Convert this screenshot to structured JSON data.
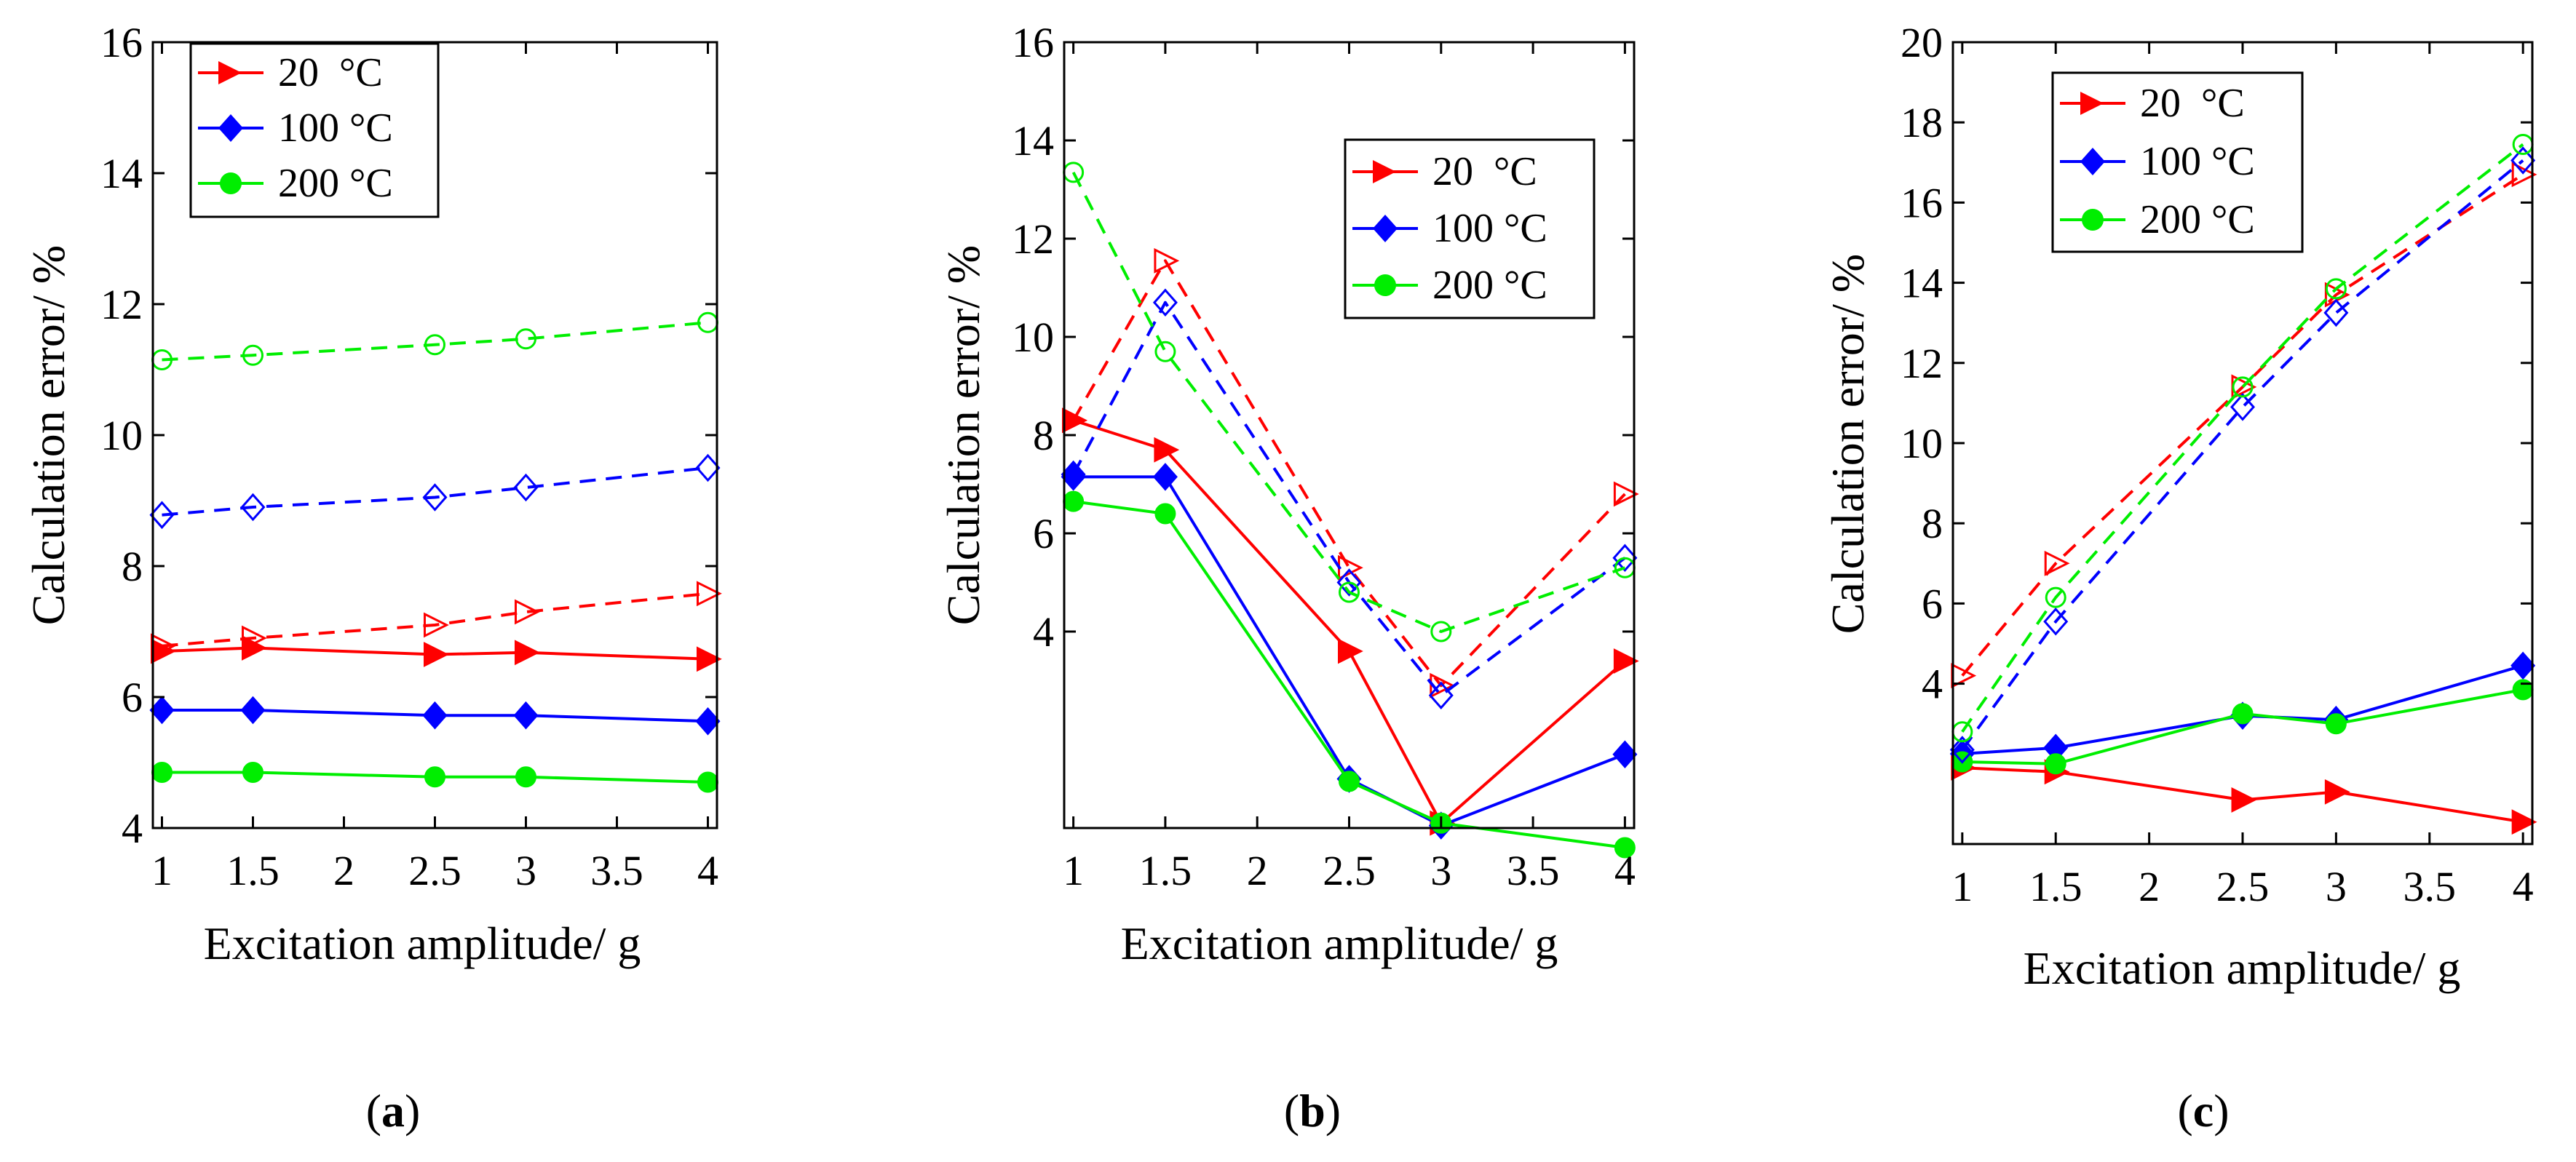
{
  "colors": {
    "red": "#ff0000",
    "blue": "#0000ff",
    "green": "#00ee00",
    "axis": "#000000"
  },
  "panels": [
    {
      "id": "a",
      "label_open": "(",
      "label_letter": "a",
      "label_close": ")",
      "xlabel": "Excitation amplitude/ g",
      "ylabel": "Calculation error/ %",
      "xlim": [
        0.95,
        4.05
      ],
      "ylim": [
        4,
        16
      ],
      "xticks": [
        1,
        1.5,
        2,
        2.5,
        3,
        3.5,
        4
      ],
      "xtick_labels": [
        "1",
        "1.5",
        "2",
        "2.5",
        "3",
        "3.5",
        "4"
      ],
      "yticks": [
        4,
        6,
        8,
        10,
        12,
        14,
        16
      ],
      "ytick_labels": [
        "4",
        "6",
        "8",
        "10",
        "12",
        "14",
        "16"
      ],
      "legend_position": "top-left",
      "legend": [
        "20  °C",
        "100 °C",
        "200 °C"
      ]
    },
    {
      "id": "b",
      "label_open": "(",
      "label_letter": "b",
      "label_close": ")",
      "xlabel": "Excitation amplitude/ g",
      "ylabel": "Calculation error/ %",
      "xlim": [
        0.95,
        4.05
      ],
      "ylim": [
        0,
        16
      ],
      "xticks": [
        1,
        1.5,
        2,
        2.5,
        3,
        3.5,
        4
      ],
      "xtick_labels": [
        "1",
        "1.5",
        "2",
        "2.5",
        "3",
        "3.5",
        "4"
      ],
      "yticks": [
        4,
        6,
        8,
        10,
        12,
        14,
        16
      ],
      "ytick_labels": [
        "4",
        "6",
        "8",
        "10",
        "12",
        "14",
        "16"
      ],
      "legend_position": "top-right",
      "legend": [
        "20  °C",
        "100 °C",
        "200 °C"
      ]
    },
    {
      "id": "c",
      "label_open": "(",
      "label_letter": "c",
      "label_close": ")",
      "xlabel": "Excitation amplitude/ g",
      "ylabel": "Calculation error/ %",
      "xlim": [
        0.95,
        4.05
      ],
      "ylim": [
        0,
        20
      ],
      "xticks": [
        1,
        1.5,
        2,
        2.5,
        3,
        3.5,
        4
      ],
      "xtick_labels": [
        "1",
        "1.5",
        "2",
        "2.5",
        "3",
        "3.5",
        "4"
      ],
      "yticks": [
        4,
        6,
        8,
        10,
        12,
        14,
        16,
        18,
        20
      ],
      "ytick_labels": [
        "4",
        "6",
        "8",
        "10",
        "12",
        "14",
        "16",
        "18",
        "20"
      ],
      "legend_position": "top-left",
      "legend": [
        "20  °C",
        "100 °C",
        "200 °C"
      ]
    }
  ],
  "chart_data": [
    {
      "type": "line",
      "panel": "a",
      "x": [
        1,
        1.5,
        2.5,
        3,
        4
      ],
      "xlabel": "Excitation amplitude/ g",
      "ylabel": "Calculation error/ %",
      "ylim": [
        4,
        16
      ],
      "series": [
        {
          "name": "20  °C",
          "color": "red",
          "style": "solid",
          "marker": "triangle-right",
          "values": [
            6.7,
            6.75,
            6.65,
            6.68,
            6.58
          ]
        },
        {
          "name": "100 °C",
          "color": "blue",
          "style": "solid",
          "marker": "diamond",
          "values": [
            5.8,
            5.8,
            5.72,
            5.72,
            5.63
          ]
        },
        {
          "name": "200 °C",
          "color": "green",
          "style": "solid",
          "marker": "circle",
          "values": [
            4.85,
            4.85,
            4.78,
            4.78,
            4.7
          ]
        },
        {
          "name": "20  °C (dashed)",
          "color": "red",
          "style": "dashed",
          "marker": "triangle-right-open",
          "values": [
            6.78,
            6.9,
            7.1,
            7.3,
            7.58
          ]
        },
        {
          "name": "100 °C (dashed)",
          "color": "blue",
          "style": "dashed",
          "marker": "diamond-open",
          "values": [
            8.78,
            8.9,
            9.05,
            9.2,
            9.5
          ]
        },
        {
          "name": "200 °C (dashed)",
          "color": "green",
          "style": "dashed",
          "marker": "circle-open",
          "values": [
            11.15,
            11.22,
            11.38,
            11.47,
            11.72
          ]
        }
      ]
    },
    {
      "type": "line",
      "panel": "b",
      "x": [
        1,
        1.5,
        2.5,
        3,
        4
      ],
      "xlabel": "Excitation amplitude/ g",
      "ylabel": "Calculation error/ %",
      "ylim": [
        0,
        16
      ],
      "series": [
        {
          "name": "20  °C",
          "color": "red",
          "style": "solid",
          "marker": "triangle-right",
          "values": [
            8.3,
            7.7,
            3.6,
            0.1,
            3.4
          ]
        },
        {
          "name": "100 °C",
          "color": "blue",
          "style": "solid",
          "marker": "diamond",
          "values": [
            7.15,
            7.15,
            1.0,
            0.05,
            1.5
          ]
        },
        {
          "name": "200 °C",
          "color": "green",
          "style": "solid",
          "marker": "circle",
          "values": [
            6.65,
            6.4,
            0.95,
            0.1,
            -0.4
          ]
        },
        {
          "name": "20  °C (dashed)",
          "color": "red",
          "style": "dashed",
          "marker": "triangle-right-open",
          "values": [
            8.3,
            11.55,
            5.3,
            2.9,
            6.8
          ]
        },
        {
          "name": "100 °C (dashed)",
          "color": "blue",
          "style": "dashed",
          "marker": "diamond-open",
          "values": [
            7.2,
            10.7,
            5.0,
            2.7,
            5.5
          ]
        },
        {
          "name": "200 °C (dashed)",
          "color": "green",
          "style": "dashed",
          "marker": "circle-open",
          "values": [
            13.35,
            9.7,
            4.8,
            4.0,
            5.3
          ]
        }
      ]
    },
    {
      "type": "line",
      "panel": "c",
      "x": [
        1,
        1.5,
        2.5,
        3,
        4
      ],
      "xlabel": "Excitation amplitude/ g",
      "ylabel": "Calculation error/ %",
      "ylim": [
        0,
        20
      ],
      "series": [
        {
          "name": "20  °C",
          "color": "red",
          "style": "solid",
          "marker": "triangle-right",
          "values": [
            1.9,
            1.8,
            1.1,
            1.3,
            0.55
          ]
        },
        {
          "name": "100 °C",
          "color": "blue",
          "style": "solid",
          "marker": "diamond",
          "values": [
            2.25,
            2.4,
            3.2,
            3.1,
            4.45
          ]
        },
        {
          "name": "200 °C",
          "color": "green",
          "style": "solid",
          "marker": "circle",
          "values": [
            2.05,
            2.0,
            3.25,
            3.0,
            3.85
          ]
        },
        {
          "name": "20  °C (dashed)",
          "color": "red",
          "style": "dashed",
          "marker": "triangle-right-open",
          "values": [
            4.2,
            7.0,
            11.4,
            13.7,
            16.7
          ]
        },
        {
          "name": "100 °C (dashed)",
          "color": "blue",
          "style": "dashed",
          "marker": "diamond-open",
          "values": [
            2.35,
            5.55,
            10.9,
            13.25,
            17.05
          ]
        },
        {
          "name": "200 °C (dashed)",
          "color": "green",
          "style": "dashed",
          "marker": "circle-open",
          "values": [
            2.8,
            6.15,
            11.4,
            13.85,
            17.45
          ]
        }
      ]
    }
  ]
}
